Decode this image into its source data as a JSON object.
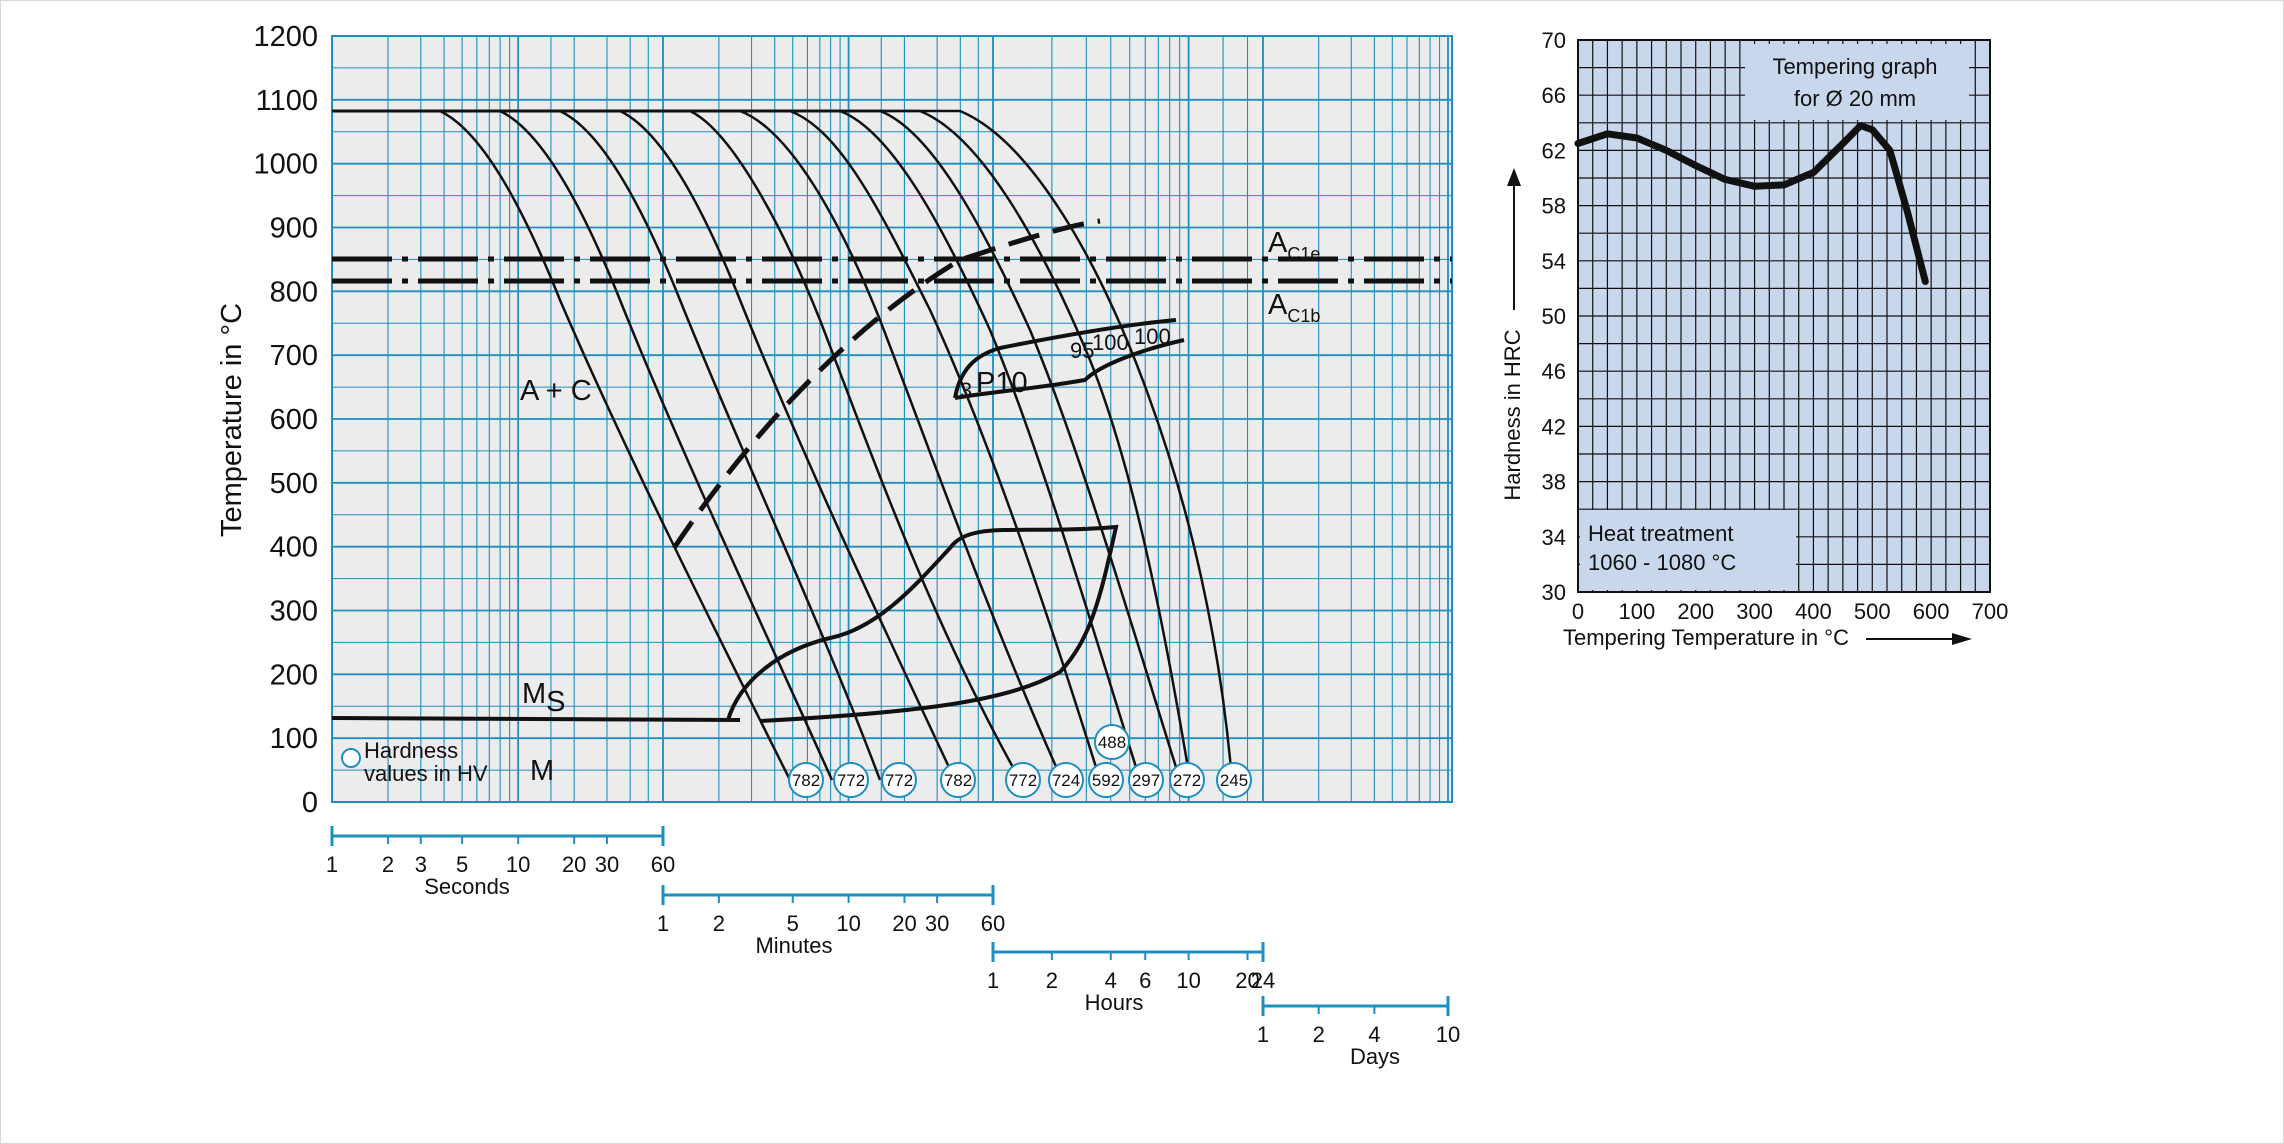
{
  "cct": {
    "y_label": "Temperature in °C",
    "y_ticks": [
      "0",
      "100",
      "200",
      "300",
      "400",
      "500",
      "600",
      "700",
      "800",
      "900",
      "1000",
      "1100",
      "1200"
    ],
    "region_labels": {
      "ac1e_main": "A",
      "ac1e_sub": "C1e",
      "ac1b_main": "A",
      "ac1b_sub": "C1b",
      "a_plus_c": "A + C",
      "p10": "P10",
      "ms_main": "M",
      "ms_sub": "S",
      "m": "M"
    },
    "pearlite_pct": [
      "3",
      "95",
      "100",
      "100"
    ],
    "legend": {
      "line1": "Hardness",
      "line2": "values in HV"
    },
    "hardness_values": [
      "782",
      "772",
      "772",
      "782",
      "772",
      "724",
      "592",
      "488",
      "297",
      "272",
      "245"
    ],
    "time_scales": [
      {
        "unit": "Seconds",
        "ticks": [
          "1",
          "2",
          "3",
          "5",
          "10",
          "20",
          "30",
          "60"
        ]
      },
      {
        "unit": "Minutes",
        "ticks": [
          "1",
          "2",
          "5",
          "10",
          "20",
          "30",
          "60"
        ]
      },
      {
        "unit": "Hours",
        "ticks": [
          "1",
          "2",
          "4",
          "6",
          "10",
          "20",
          "24"
        ]
      },
      {
        "unit": "Days",
        "ticks": [
          "1",
          "2",
          "4",
          "10"
        ]
      }
    ]
  },
  "chart_data": [
    {
      "type": "line",
      "ylabel": "Temperature in °C",
      "xlabel": "",
      "ylim": [
        0,
        1200
      ],
      "austenitizing_temperature": 1080,
      "Ac1e": 850,
      "Ac1b": 815,
      "Ms": 125,
      "hardness_HV_end_of_cooling_curves": [
        782,
        772,
        772,
        782,
        772,
        724,
        592,
        488,
        297,
        272,
        245
      ],
      "time_axis_units": [
        "Seconds",
        "Minutes",
        "Hours",
        "Days"
      ],
      "grid": true
    },
    {
      "type": "line",
      "title": "Tempering graph for Ø 20 mm",
      "xlabel": "Tempering Temperature in °C",
      "ylabel": "Hardness in HRC",
      "xlim": [
        0,
        700
      ],
      "ylim": [
        30,
        70
      ],
      "series": [
        {
          "x": [
            0,
            50,
            100,
            150,
            200,
            250,
            300,
            350,
            400,
            450,
            480,
            500,
            530,
            560,
            590
          ],
          "y": [
            62.5,
            63.2,
            62.9,
            62.0,
            60.9,
            59.9,
            59.4,
            59.5,
            60.4,
            62.5,
            63.8,
            63.5,
            62.0,
            57.5,
            52.5
          ]
        }
      ],
      "annotation": "Heat treatment 1060 - 1080 °C",
      "grid": true
    }
  ],
  "tempering": {
    "title_line1": "Tempering graph",
    "title_line2": "for Ø 20 mm",
    "y_label": "Hardness in HRC",
    "x_label": "Tempering Temperature in °C",
    "x_ticks": [
      "0",
      "100",
      "200",
      "300",
      "400",
      "500",
      "600",
      "700"
    ],
    "y_ticks": [
      "30",
      "34",
      "38",
      "42",
      "46",
      "50",
      "54",
      "58",
      "62",
      "66",
      "70"
    ],
    "heat_treatment_line1": "Heat treatment",
    "heat_treatment_line2": "1060 - 1080 °C"
  },
  "colors": {
    "grid": "#1d8fc1",
    "plot_bg": "#ececec",
    "temper_bg": "#c9d7ec",
    "curve": "#111111"
  }
}
